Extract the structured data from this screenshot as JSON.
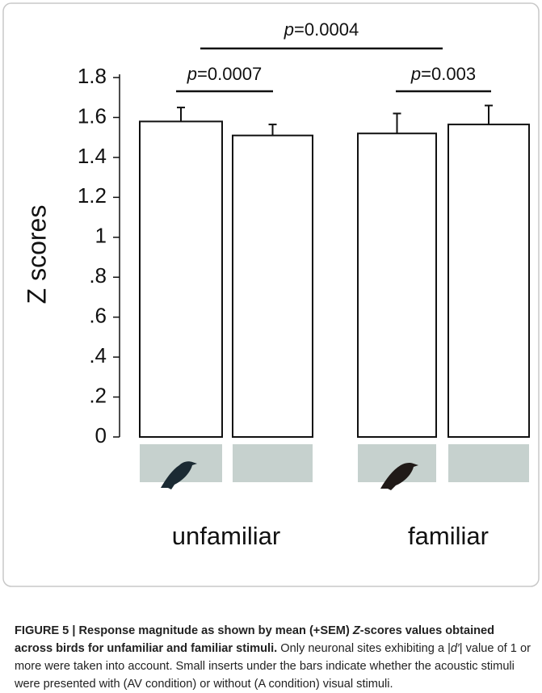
{
  "chart_data": {
    "type": "bar",
    "ylabel": "Z scores",
    "groups": [
      "unfamiliar",
      "familiar"
    ],
    "categories": [
      null,
      null,
      null,
      null
    ],
    "values": [
      1.58,
      1.51,
      1.52,
      1.565
    ],
    "errors": [
      0.07,
      0.055,
      0.1,
      0.095
    ],
    "color": "#ffffff",
    "insert_color": "#c6d1ce",
    "ylim": [
      0,
      1.8
    ],
    "yticks": [
      0,
      {
        "value": 0.2,
        "label": ".2"
      },
      {
        "value": 0.4,
        "label": ".4"
      },
      {
        "value": 0.6,
        "label": ".6"
      },
      {
        "value": 0.8,
        "label": ".8"
      },
      1,
      1.2,
      1.4,
      1.6,
      1.8
    ],
    "grid": false,
    "annotations": [
      {
        "symbol": "p",
        "text": "=0.0004"
      },
      {
        "symbol": "p",
        "text": "=0.0007"
      },
      {
        "symbol": "p",
        "text": "=0.003"
      }
    ]
  },
  "caption": [
    "FIGURE 5 | Response magnitude as shown by mean (+SEM) ",
    "Z",
    "-scores values obtained across birds for unfamiliar and familiar stimuli.",
    " Only neuronal sites exhibiting a |",
    "d′",
    "| value of 1 or more were taken into account. Small inserts under the bars indicate whether the acoustic stimuli were presented with (AV condition) or without (A condition) visual stimuli."
  ]
}
